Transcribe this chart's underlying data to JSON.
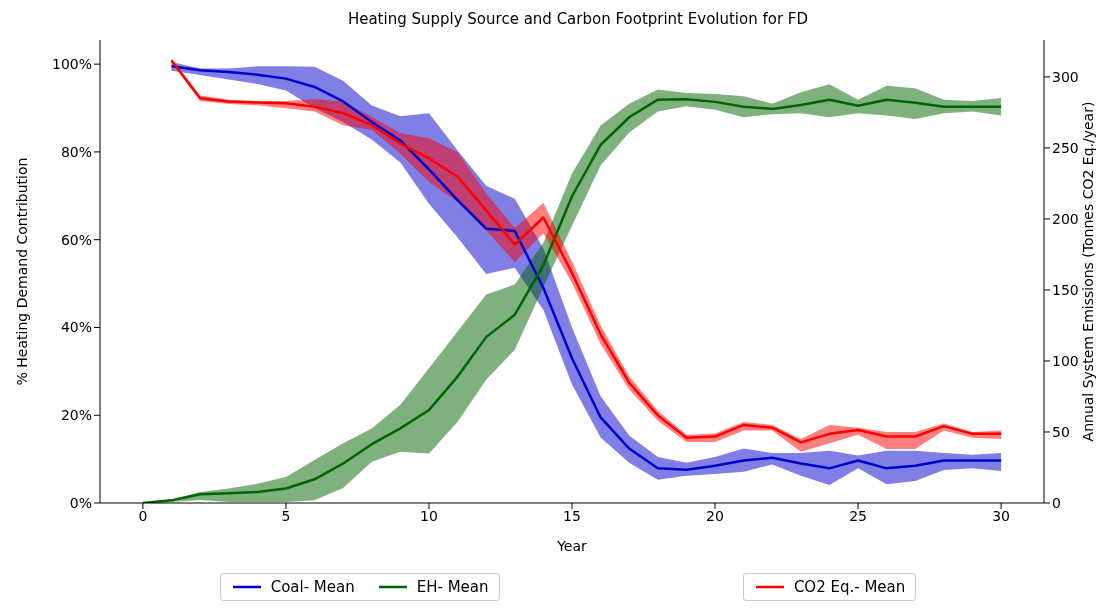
{
  "chart_data": {
    "type": "line",
    "title": "Heating Supply Source and Carbon Footprint Evolution for FD",
    "xlabel": "Year",
    "ylabel": "% Heating Demand Contribution",
    "y2label": "Annual System Emissions (Tonnes CO2 Eq./year)",
    "x": [
      0,
      1,
      2,
      3,
      4,
      5,
      6,
      7,
      8,
      9,
      10,
      11,
      12,
      13,
      14,
      15,
      16,
      17,
      18,
      19,
      20,
      21,
      22,
      23,
      24,
      25,
      26,
      27,
      28,
      29,
      30
    ],
    "series": [
      {
        "name": "Coal- Mean",
        "color": "#0000cc",
        "axis": "y",
        "values": [
          null,
          99.5,
          98.6,
          98.2,
          97.6,
          96.7,
          94.8,
          91.5,
          86.8,
          82.6,
          76,
          69,
          62.5,
          62,
          49,
          33,
          19.5,
          12.4,
          7.9,
          7.6,
          8.5,
          9.7,
          10.3,
          9,
          7.9,
          9.7,
          7.9,
          8.5,
          9.7,
          9.7,
          9.7
        ],
        "lower": [
          null,
          98.5,
          97.5,
          96.5,
          95.5,
          94,
          90,
          86.8,
          82.8,
          77.6,
          68.2,
          60.5,
          52.2,
          53.6,
          44,
          27,
          14.9,
          9.2,
          5.3,
          6.2,
          6.6,
          7.1,
          8.8,
          6.2,
          4.1,
          7.9,
          4.3,
          5,
          7.5,
          7.9,
          7.3
        ],
        "upper": [
          null,
          100.5,
          99,
          99,
          99.5,
          99.5,
          99.4,
          96.2,
          90.6,
          88.1,
          88.8,
          80.3,
          72.3,
          69.3,
          58,
          40,
          24.3,
          15.4,
          10.5,
          9.2,
          10.5,
          12.4,
          11.4,
          11.4,
          11.9,
          10.8,
          11.9,
          11.9,
          11.4,
          11,
          11.4
        ]
      },
      {
        "name": "EH- Mean",
        "color": "#006400",
        "axis": "y",
        "values": [
          0,
          0.6,
          2,
          2.2,
          2.5,
          3.3,
          5.4,
          9,
          13.4,
          17,
          21.2,
          28.8,
          37.8,
          42.9,
          54.2,
          69.9,
          81.6,
          87.9,
          91.9,
          92,
          91.4,
          90.3,
          89.8,
          90.7,
          91.9,
          90.5,
          91.9,
          91.2,
          90.3,
          90.3,
          90.3
        ],
        "lower": [
          0,
          0.2,
          0.7,
          0.2,
          0.2,
          0.2,
          0.6,
          3.4,
          9.4,
          11.7,
          11.3,
          18.5,
          28.1,
          34.9,
          49.2,
          63.2,
          76.9,
          84.4,
          89.2,
          90.4,
          89.6,
          87.9,
          88.6,
          88.8,
          87.9,
          88.8,
          88.3,
          87.5,
          88.8,
          89.2,
          88.3
        ],
        "upper": [
          0,
          0.8,
          2.5,
          3.3,
          4.4,
          5.9,
          9.8,
          13.6,
          17,
          22.4,
          30.7,
          39.1,
          47.5,
          49.8,
          59.3,
          75.1,
          86,
          91,
          94.2,
          93.4,
          93.2,
          92.7,
          91,
          93.6,
          95.4,
          91.9,
          95.1,
          94.5,
          91.9,
          91.6,
          92.3
        ]
      },
      {
        "name": "CO2 Eq.- Mean",
        "color": "#ff0000",
        "axis": "y2",
        "values": [
          null,
          311.6,
          285,
          282.7,
          282,
          281.5,
          279,
          274.5,
          266,
          253,
          242.7,
          229.7,
          206,
          182,
          201,
          162,
          118.8,
          84.7,
          61.7,
          45.9,
          46.8,
          55,
          53,
          42.7,
          48.7,
          51.4,
          46.8,
          46.8,
          54.1,
          48.7,
          48.7
        ],
        "lower": [
          null,
          310,
          283,
          281,
          280,
          278,
          275.6,
          266,
          262.7,
          246,
          226,
          212,
          192,
          169.7,
          190,
          155,
          112,
          80,
          58,
          43,
          43,
          51,
          51,
          36,
          42,
          48,
          38,
          38,
          51,
          46,
          45
        ],
        "upper": [
          null,
          313,
          287,
          284,
          283,
          283,
          284.4,
          282.7,
          272,
          260.4,
          256.8,
          247,
          218,
          193.5,
          211.4,
          170,
          125,
          89,
          65,
          48,
          49,
          57,
          55,
          45,
          55,
          53,
          50,
          50,
          56,
          50,
          51
        ]
      }
    ],
    "xlim": [
      -1.5,
      31.5
    ],
    "xticks": [
      0,
      5,
      10,
      15,
      20,
      25,
      30
    ],
    "ylim": [
      0,
      105.5
    ],
    "yticks": [
      {
        "value": 0,
        "label": "0%"
      },
      {
        "value": 20,
        "label": "20%"
      },
      {
        "value": 40,
        "label": "40%"
      },
      {
        "value": 60,
        "label": "60%"
      },
      {
        "value": 80,
        "label": "80%"
      },
      {
        "value": 100,
        "label": "100%"
      }
    ],
    "y2lim": [
      0,
      326
    ],
    "y2ticks": [
      0,
      50,
      100,
      150,
      200,
      250,
      300
    ],
    "legend": "bottom"
  }
}
